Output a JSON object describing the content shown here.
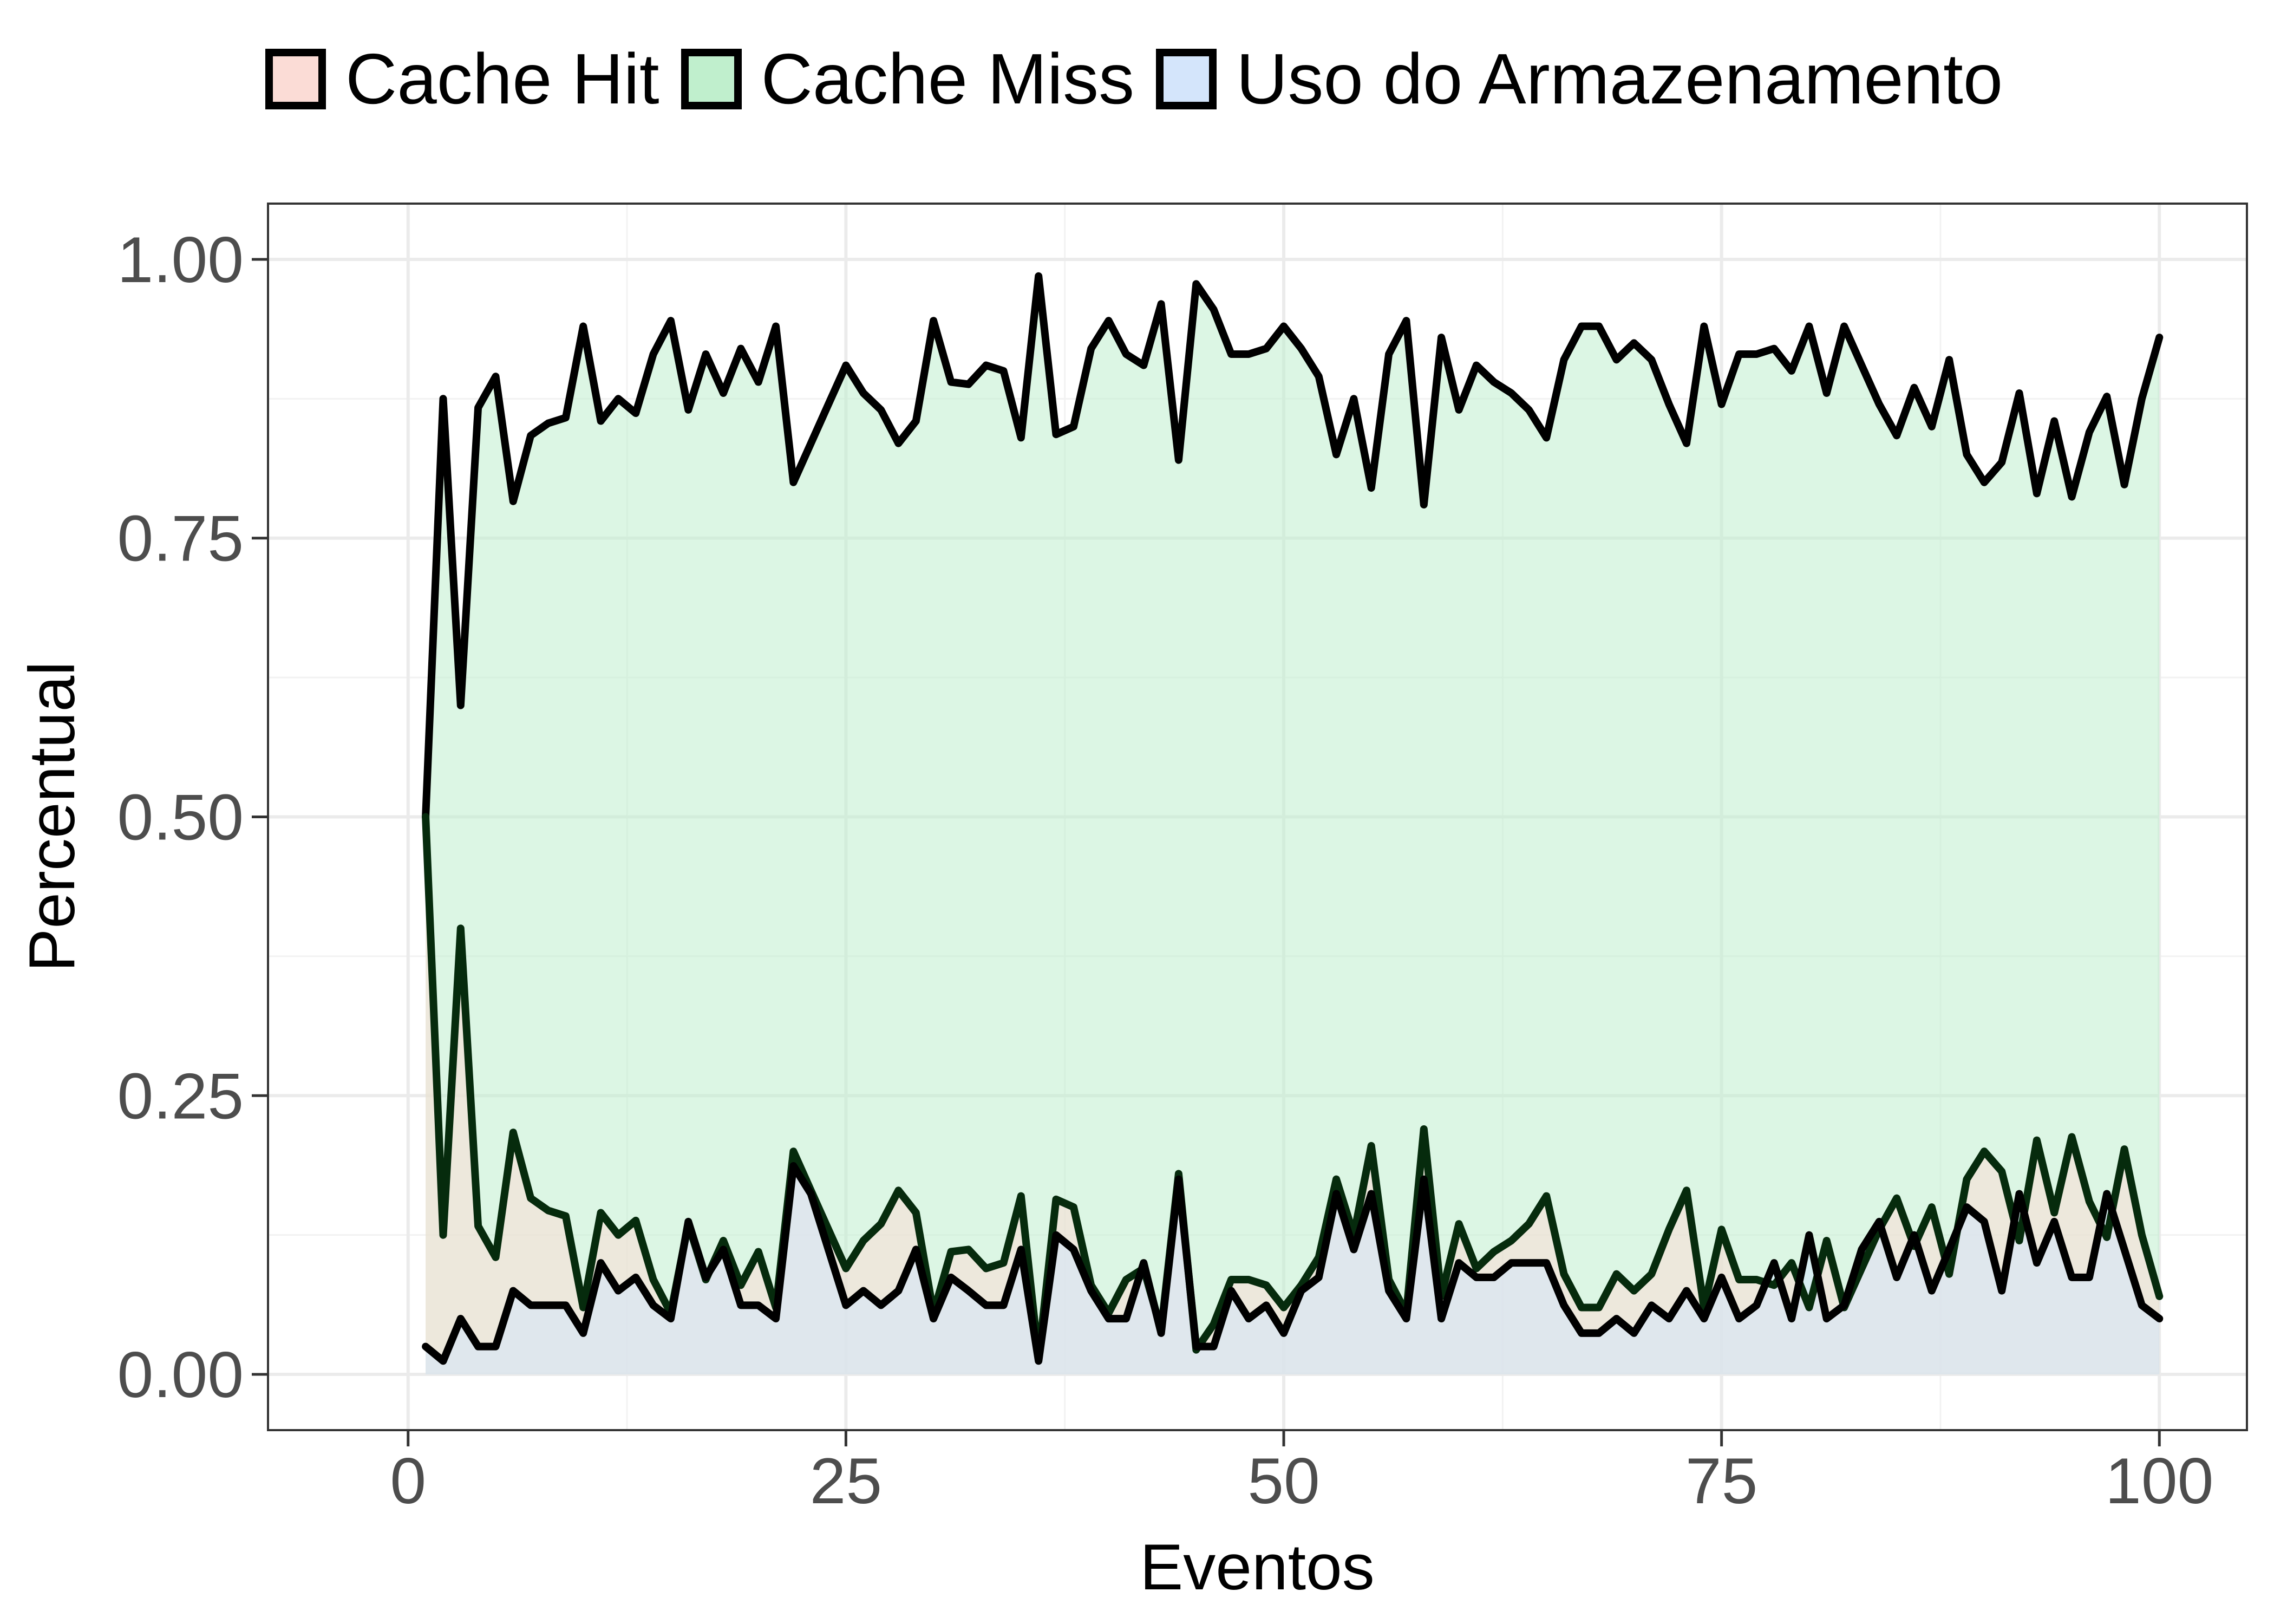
{
  "chart_data": {
    "type": "area",
    "xlabel": "Eventos",
    "ylabel": "Percentual",
    "xlim": [
      -8,
      105
    ],
    "ylim": [
      -0.05,
      1.05
    ],
    "x_ticks": [
      0,
      25,
      50,
      75,
      100
    ],
    "x_tick_labels": [
      "0",
      "25",
      "50",
      "75",
      "100"
    ],
    "y_ticks": [
      0,
      0.25,
      0.5,
      0.75,
      1.0
    ],
    "y_tick_labels": [
      "0.00",
      "0.25",
      "0.50",
      "0.75",
      "1.00"
    ],
    "grid": true,
    "legend_position": "top",
    "x": [
      1,
      2,
      3,
      4,
      5,
      6,
      7,
      8,
      9,
      10,
      11,
      12,
      13,
      14,
      15,
      16,
      17,
      18,
      19,
      20,
      21,
      22,
      23,
      24,
      25,
      26,
      27,
      28,
      29,
      30,
      31,
      32,
      33,
      34,
      35,
      36,
      37,
      38,
      39,
      40,
      41,
      42,
      43,
      44,
      45,
      46,
      47,
      48,
      49,
      50,
      51,
      52,
      53,
      54,
      55,
      56,
      57,
      58,
      59,
      60,
      61,
      62,
      63,
      64,
      65,
      66,
      67,
      68,
      69,
      70,
      71,
      72,
      73,
      74,
      75,
      76,
      77,
      78,
      79,
      80,
      81,
      82,
      83,
      84,
      85,
      86,
      87,
      88,
      89,
      90,
      91,
      92,
      93,
      94,
      95,
      96,
      97,
      98,
      99,
      100
    ],
    "series": [
      {
        "name": "Cache Hit",
        "fill": "#fbdcd6",
        "values": [
          0.5,
          0.125,
          0.4,
          0.133,
          0.105,
          0.217,
          0.158,
          0.147,
          0.142,
          0.06,
          0.145,
          0.125,
          0.138,
          0.085,
          0.055,
          0.135,
          0.085,
          0.12,
          0.08,
          0.11,
          0.06,
          0.2,
          0.165,
          0.13,
          0.095,
          0.12,
          0.135,
          0.165,
          0.145,
          0.055,
          0.11,
          0.112,
          0.095,
          0.1,
          0.16,
          0.015,
          0.157,
          0.15,
          0.08,
          0.055,
          0.085,
          0.095,
          0.04,
          0.18,
          0.022,
          0.045,
          0.085,
          0.085,
          0.08,
          0.06,
          0.08,
          0.105,
          0.175,
          0.125,
          0.205,
          0.085,
          0.055,
          0.22,
          0.07,
          0.135,
          0.095,
          0.11,
          0.12,
          0.135,
          0.16,
          0.09,
          0.06,
          0.06,
          0.09,
          0.075,
          0.09,
          0.13,
          0.165,
          0.06,
          0.13,
          0.085,
          0.085,
          0.08,
          0.1,
          0.06,
          0.12,
          0.06,
          0.095,
          0.13,
          0.158,
          0.115,
          0.15,
          0.09,
          0.175,
          0.2,
          0.182,
          0.12,
          0.21,
          0.145,
          0.213,
          0.155,
          0.123,
          0.202,
          0.125,
          0.07
        ]
      },
      {
        "name": "Cache Miss",
        "fill": "#c0efcd",
        "values": [
          0.5,
          0.875,
          0.6,
          0.867,
          0.895,
          0.783,
          0.842,
          0.853,
          0.858,
          0.94,
          0.855,
          0.875,
          0.862,
          0.915,
          0.945,
          0.865,
          0.915,
          0.88,
          0.92,
          0.89,
          0.94,
          0.8,
          0.835,
          0.87,
          0.905,
          0.88,
          0.865,
          0.835,
          0.855,
          0.945,
          0.89,
          0.888,
          0.905,
          0.9,
          0.84,
          0.985,
          0.843,
          0.85,
          0.92,
          0.945,
          0.915,
          0.905,
          0.96,
          0.82,
          0.978,
          0.955,
          0.915,
          0.915,
          0.92,
          0.94,
          0.92,
          0.895,
          0.825,
          0.875,
          0.795,
          0.915,
          0.945,
          0.78,
          0.93,
          0.865,
          0.905,
          0.89,
          0.88,
          0.865,
          0.84,
          0.91,
          0.94,
          0.94,
          0.91,
          0.925,
          0.91,
          0.87,
          0.835,
          0.94,
          0.87,
          0.915,
          0.915,
          0.92,
          0.9,
          0.94,
          0.88,
          0.94,
          0.905,
          0.87,
          0.842,
          0.885,
          0.85,
          0.91,
          0.825,
          0.8,
          0.818,
          0.88,
          0.79,
          0.855,
          0.787,
          0.845,
          0.877,
          0.798,
          0.875,
          0.93
        ]
      },
      {
        "name": "Uso do Armazenamento",
        "fill": "#d4e5fb",
        "values": [
          0.025,
          0.012,
          0.05,
          0.025,
          0.025,
          0.075,
          0.062,
          0.062,
          0.062,
          0.037,
          0.1,
          0.075,
          0.087,
          0.062,
          0.05,
          0.137,
          0.087,
          0.112,
          0.062,
          0.062,
          0.05,
          0.187,
          0.162,
          0.112,
          0.062,
          0.075,
          0.062,
          0.075,
          0.112,
          0.05,
          0.087,
          0.075,
          0.062,
          0.062,
          0.112,
          0.012,
          0.125,
          0.112,
          0.075,
          0.05,
          0.05,
          0.1,
          0.037,
          0.175,
          0.025,
          0.025,
          0.075,
          0.05,
          0.062,
          0.037,
          0.075,
          0.087,
          0.162,
          0.112,
          0.162,
          0.075,
          0.05,
          0.175,
          0.05,
          0.1,
          0.087,
          0.087,
          0.1,
          0.1,
          0.1,
          0.062,
          0.037,
          0.037,
          0.05,
          0.037,
          0.062,
          0.05,
          0.075,
          0.05,
          0.087,
          0.05,
          0.062,
          0.1,
          0.05,
          0.125,
          0.05,
          0.062,
          0.112,
          0.137,
          0.087,
          0.125,
          0.075,
          0.112,
          0.15,
          0.137,
          0.075,
          0.162,
          0.1,
          0.137,
          0.087,
          0.087,
          0.162,
          0.112,
          0.062,
          0.05
        ]
      }
    ]
  }
}
